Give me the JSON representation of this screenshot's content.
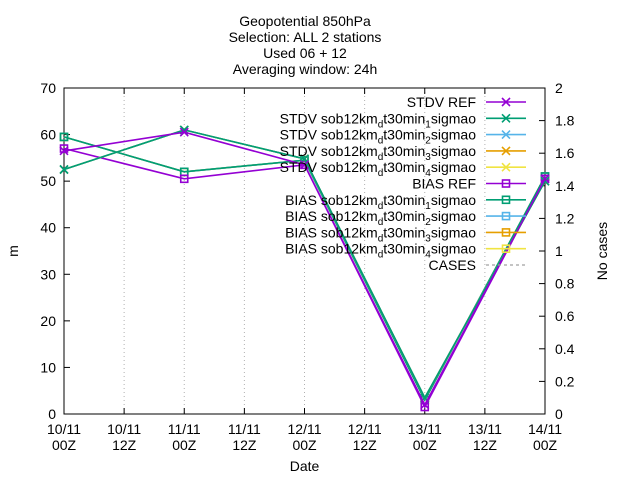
{
  "chart_data": {
    "type": "line",
    "title_lines": [
      "Geopotential 850hPa",
      "Selection: ALL       2 stations",
      "Used 06 + 12",
      "Averaging window: 24h"
    ],
    "xlabel": "Date",
    "ylabel": "m",
    "y2label": "No cases",
    "x_tick_labels": [
      [
        "10/11",
        "00Z"
      ],
      [
        "10/11",
        "12Z"
      ],
      [
        "11/11",
        "00Z"
      ],
      [
        "11/11",
        "12Z"
      ],
      [
        "12/11",
        "00Z"
      ],
      [
        "12/11",
        "12Z"
      ],
      [
        "13/11",
        "00Z"
      ],
      [
        "13/11",
        "12Z"
      ],
      [
        "14/11",
        "00Z"
      ]
    ],
    "xlim": [
      0,
      8
    ],
    "ylim": [
      0,
      70
    ],
    "y_ticks": [
      0,
      10,
      20,
      30,
      40,
      50,
      60,
      70
    ],
    "y2lim": [
      0,
      2
    ],
    "y2_ticks": [
      "0",
      "0.2",
      "0.4",
      "0.6",
      "0.8",
      "1",
      "1.2",
      "1.4",
      "1.6",
      "1.8",
      "2"
    ],
    "legend_position": "top-right",
    "series": [
      {
        "label_main": "STDV REF",
        "color": "#9400d3",
        "marker": "x",
        "axis": "y1",
        "x": [
          0,
          2,
          4,
          6,
          8
        ],
        "values": [
          56.5,
          60.5,
          53.5,
          2.0,
          50.5
        ]
      },
      {
        "label_main": "STDV sob12km",
        "label_sub": "d",
        "label_main2": "t30min",
        "label_sub2": "1",
        "label_main3": "sigmao",
        "color": "#009e73",
        "marker": "x",
        "axis": "y1",
        "x": [
          0,
          2,
          4,
          6,
          8
        ],
        "values": [
          52.5,
          61.0,
          54.8,
          3.5,
          50.0
        ]
      },
      {
        "label_main": "STDV sob12km",
        "label_sub": "d",
        "label_main2": "t30min",
        "label_sub2": "2",
        "label_main3": "sigmao",
        "color": "#56b4e9",
        "marker": "x",
        "axis": "y1",
        "x": [
          0,
          2,
          4,
          6,
          8
        ],
        "values": [
          52.5,
          61.0,
          54.8,
          3.5,
          50.0
        ]
      },
      {
        "label_main": "STDV sob12km",
        "label_sub": "d",
        "label_main2": "t30min",
        "label_sub2": "3",
        "label_main3": "sigmao",
        "color": "#e69f00",
        "marker": "x",
        "axis": "y1",
        "x": [
          0,
          2,
          4,
          6,
          8
        ],
        "values": [
          52.5,
          61.0,
          54.8,
          3.5,
          50.0
        ]
      },
      {
        "label_main": "STDV sob12km",
        "label_sub": "d",
        "label_main2": "t30min",
        "label_sub2": "4",
        "label_main3": "sigmao",
        "color": "#f0e442",
        "marker": "x",
        "axis": "y1",
        "x": [
          0,
          2,
          4,
          6,
          8
        ],
        "values": [
          52.5,
          61.0,
          54.8,
          3.5,
          50.0
        ]
      },
      {
        "label_main": "BIAS REF",
        "color": "#9400d3",
        "marker": "square",
        "axis": "y1",
        "x": [
          0,
          2,
          4,
          6,
          8
        ],
        "values": [
          57.0,
          50.5,
          53.5,
          1.5,
          50.5
        ]
      },
      {
        "label_main": "BIAS sob12km",
        "label_sub": "d",
        "label_main2": "t30min",
        "label_sub2": "1",
        "label_main3": "sigmao",
        "color": "#009e73",
        "marker": "square",
        "axis": "y1",
        "x": [
          0,
          2,
          4,
          6,
          8
        ],
        "values": [
          59.5,
          52.0,
          54.5,
          3.0,
          51.0
        ]
      },
      {
        "label_main": "BIAS sob12km",
        "label_sub": "d",
        "label_main2": "t30min",
        "label_sub2": "2",
        "label_main3": "sigmao",
        "color": "#56b4e9",
        "marker": "square",
        "axis": "y1",
        "x": [
          0,
          2,
          4,
          6,
          8
        ],
        "values": [
          59.5,
          52.0,
          54.5,
          3.0,
          51.0
        ]
      },
      {
        "label_main": "BIAS sob12km",
        "label_sub": "d",
        "label_main2": "t30min",
        "label_sub2": "3",
        "label_main3": "sigmao",
        "color": "#e69f00",
        "marker": "square",
        "axis": "y1",
        "x": [
          0,
          2,
          4,
          6,
          8
        ],
        "values": [
          59.5,
          52.0,
          54.5,
          3.0,
          51.0
        ]
      },
      {
        "label_main": "BIAS sob12km",
        "label_sub": "d",
        "label_main2": "t30min",
        "label_sub2": "4",
        "label_main3": "sigmao",
        "color": "#f0e442",
        "marker": "square",
        "axis": "y1",
        "x": [
          0,
          2,
          4,
          6,
          8
        ],
        "values": [
          59.5,
          52.0,
          54.5,
          3.0,
          51.0
        ]
      },
      {
        "label_main": "CASES",
        "color": "#a0a0a0",
        "marker": "dashed",
        "axis": "y2",
        "x": [],
        "values": []
      }
    ]
  }
}
